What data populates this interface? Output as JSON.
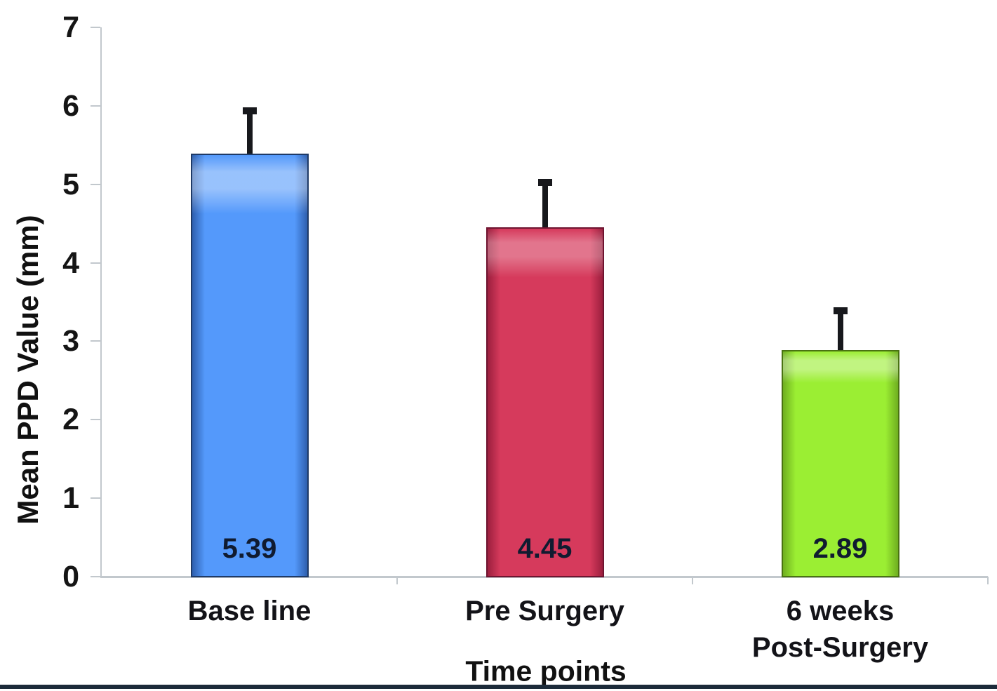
{
  "chart_data": {
    "type": "bar",
    "title": "",
    "xlabel": "Time points",
    "ylabel": "Mean PPD Value (mm)",
    "ylim": [
      0,
      7
    ],
    "yticks": [
      0,
      1,
      2,
      3,
      4,
      5,
      6,
      7
    ],
    "categories": [
      [
        "Base line"
      ],
      [
        "Pre Surgery"
      ],
      [
        "6 weeks",
        "Post-Surgery"
      ]
    ],
    "values": [
      5.39,
      4.45,
      2.89
    ],
    "value_labels": [
      "5.39",
      "4.45",
      "2.89"
    ],
    "errors_plus": [
      0.59,
      0.62,
      0.54
    ],
    "grid": false,
    "legend": false,
    "bars": [
      {
        "name": "Base line",
        "fill": "#5499fb",
        "edge": "#2e5fae",
        "border": "#1f3a66",
        "highlight": "rgba(255,255,255,0.40)"
      },
      {
        "name": "Pre Surgery",
        "fill": "#d63a5c",
        "edge": "#9c1f3e",
        "border": "#6e1430",
        "highlight": "rgba(255,255,255,0.30)"
      },
      {
        "name": "6 weeks Post-Surgery",
        "fill": "#9bee33",
        "edge": "#6fae20",
        "border": "#4a7312",
        "highlight": "rgba(255,255,255,0.38)"
      }
    ],
    "error_bar_color": "#17181c",
    "axis_color": "#c2c8cd",
    "value_label_color": "#101b30",
    "bottom_rule_color": "#1c2b3a"
  }
}
